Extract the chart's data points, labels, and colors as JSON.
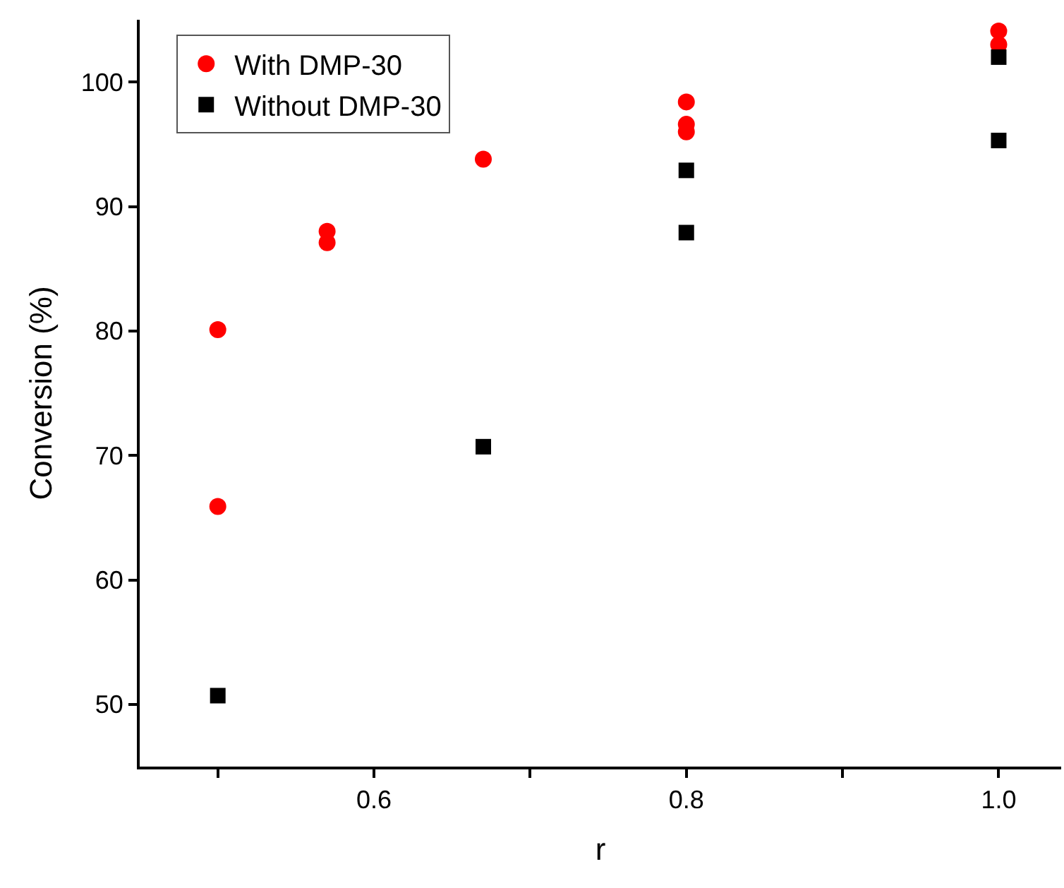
{
  "chart_data": {
    "type": "scatter",
    "xlabel": "r",
    "ylabel": "Conversion (%)",
    "xlim": [
      0.45,
      1.04
    ],
    "ylim": [
      45,
      105
    ],
    "xticks": [
      {
        "value": 0.5,
        "label": null
      },
      {
        "value": 0.6,
        "label": "0.6"
      },
      {
        "value": 0.7,
        "label": null
      },
      {
        "value": 0.8,
        "label": "0.8"
      },
      {
        "value": 0.9,
        "label": null
      },
      {
        "value": 1.0,
        "label": "1.0"
      }
    ],
    "yticks": [
      50,
      60,
      70,
      80,
      90,
      100
    ],
    "legend": "top left",
    "series": [
      {
        "name": "With DMP-30",
        "color": "#ff0000",
        "marker": "circle",
        "x": [
          0.5,
          0.5,
          0.57,
          0.57,
          0.67,
          0.8,
          0.8,
          0.8,
          1.0,
          1.0
        ],
        "values": [
          80.1,
          65.9,
          88.0,
          87.1,
          93.8,
          98.4,
          96.6,
          96.0,
          104.1,
          103.0
        ]
      },
      {
        "name": "Without DMP-30",
        "color": "#000000",
        "marker": "square",
        "x": [
          0.5,
          0.67,
          0.8,
          0.8,
          1.0,
          1.0
        ],
        "values": [
          50.7,
          70.7,
          92.9,
          87.9,
          102.0,
          95.3
        ]
      }
    ]
  }
}
